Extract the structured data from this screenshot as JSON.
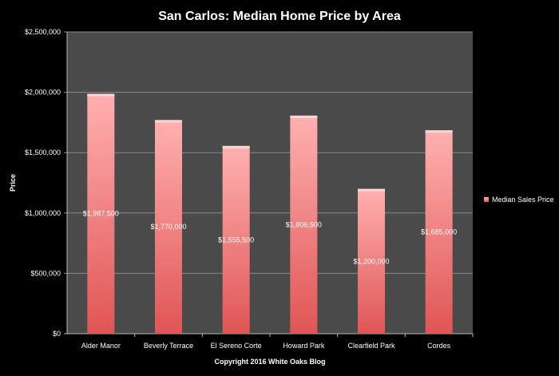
{
  "chart_data": {
    "type": "bar",
    "title": "San Carlos:  Median Home Price by Area",
    "xlabel": "Copyright 2016 White  Oaks Blog",
    "ylabel": "Price",
    "ylim": [
      0,
      2500000
    ],
    "yticks": [
      0,
      500000,
      1000000,
      1500000,
      2000000,
      2500000
    ],
    "ytick_labels": [
      "$0",
      "$500,000",
      "$1,000,000",
      "$1,500,000",
      "$2,000,000",
      "$2,500,000"
    ],
    "categories": [
      "Alder Manor",
      "Beverly Terrace",
      "El Sereno Corte",
      "Howard Park",
      "Clearfield Park",
      "Cordes"
    ],
    "series": [
      {
        "name": "Median Sales Price",
        "values": [
          1987500,
          1770000,
          1555500,
          1806500,
          1200000,
          1685000
        ],
        "labels": [
          "$1,987,500",
          "$1,770,000",
          "$1,555,500",
          "$1,806,500",
          "$1,200,000",
          "$1,685,000"
        ]
      }
    ],
    "grid": true,
    "legend": "right",
    "colors": {
      "bar_top": "#ffb0b0",
      "bar_bottom": "#e05555",
      "plot_bg": "#4a4a4a",
      "grid": "#8a8a8a"
    }
  }
}
